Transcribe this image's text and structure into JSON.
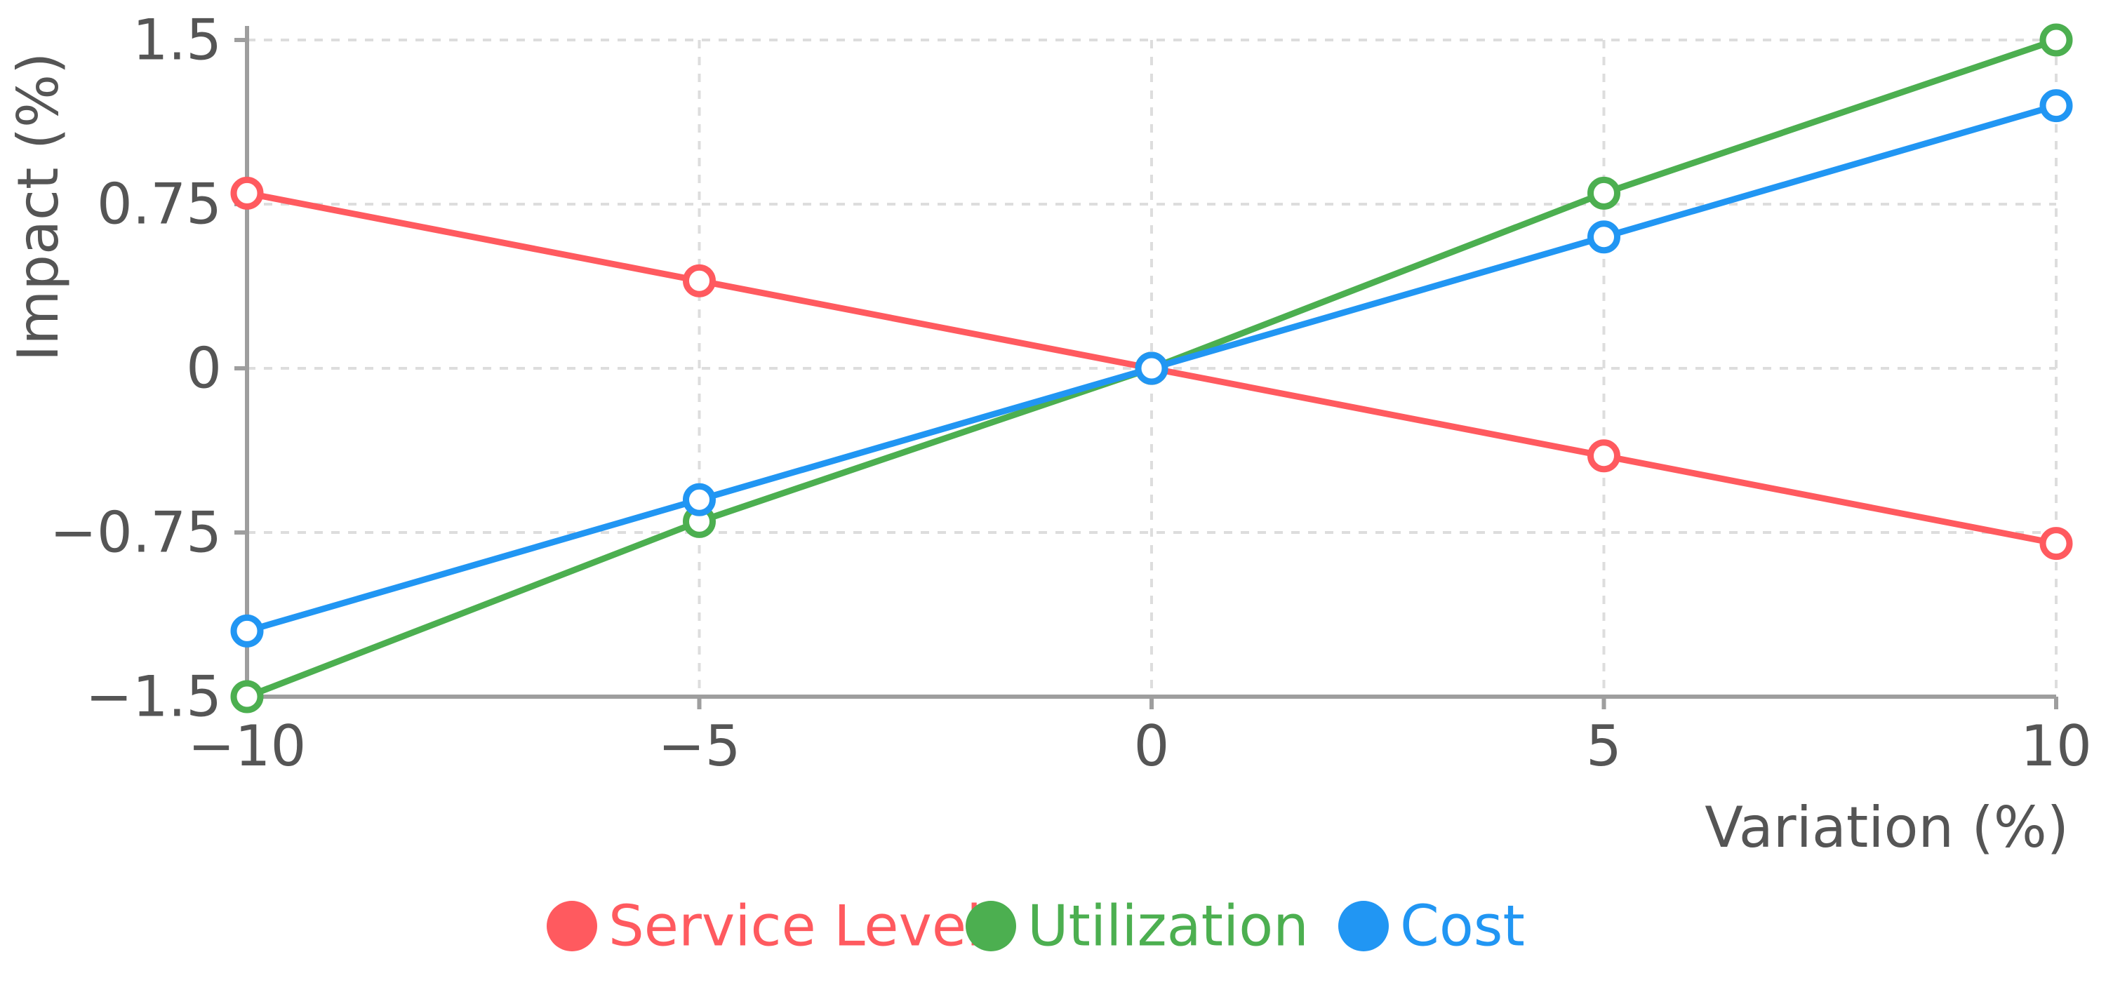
{
  "chart_data": {
    "type": "line",
    "x": [
      -10,
      -5,
      0,
      5,
      10
    ],
    "xlabel": "Variation (%)",
    "ylabel": "Impact (%)",
    "xlim": [
      -10,
      10
    ],
    "ylim": [
      -1.5,
      1.5
    ],
    "xticks": [
      -10,
      -5,
      0,
      5,
      10
    ],
    "yticks": [
      -1.5,
      -0.75,
      0,
      0.75,
      1.5
    ],
    "xtick_labels": [
      "−10",
      "−5",
      "0",
      "5",
      "10"
    ],
    "ytick_labels": [
      "−1.5",
      "−0.75",
      "0",
      "0.75",
      "1.5"
    ],
    "grid": true,
    "legend_position": "bottom-center",
    "series": [
      {
        "name": "Service Level",
        "color": "#ff5a5f",
        "values": [
          0.8,
          0.4,
          0,
          -0.4,
          -0.8
        ]
      },
      {
        "name": "Utilization",
        "color": "#4caf50",
        "values": [
          -1.5,
          -0.7,
          0,
          0.8,
          1.5
        ]
      },
      {
        "name": "Cost",
        "color": "#2196f3",
        "values": [
          -1.2,
          -0.6,
          0,
          0.6,
          1.2
        ]
      }
    ]
  }
}
